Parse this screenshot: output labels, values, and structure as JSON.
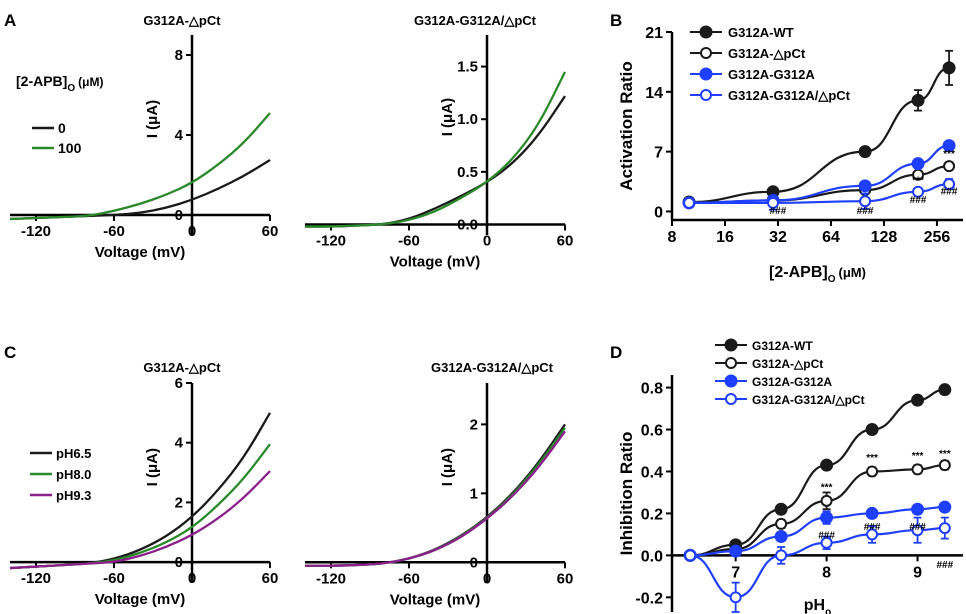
{
  "panel_letters": {
    "a": "A",
    "b": "B",
    "c": "C",
    "d": "D"
  },
  "colors": {
    "black": "#1a1a1a",
    "green": "#2a8a2a",
    "purple": "#8b1f8b",
    "blue": "#1f3fff"
  },
  "symbols": {
    "star": "***",
    "hash": "###"
  },
  "panel_a_left": {
    "subtitle": "G312A-△pCt",
    "legend_title": "[2-APB]",
    "legend_title_sub": "O",
    "legend_title_unit": "(μM)",
    "legend": [
      "0",
      "100"
    ]
  },
  "panel_a_right": {
    "subtitle": "G312A-G312A/△pCt"
  },
  "panel_c_left": {
    "subtitle": "G312A-△pCt",
    "legend": [
      "pH6.5",
      "pH8.0",
      "pH9.3"
    ]
  },
  "panel_c_right": {
    "subtitle": "G312A-G312A/△pCt"
  },
  "panel_b": {
    "legend": [
      "G312A-WT",
      "G312A-△pCt",
      "G312A-G312A",
      "G312A-G312A/△pCt"
    ]
  },
  "panel_d": {
    "legend": [
      "G312A-WT",
      "G312A-△pCt",
      "G312A-G312A",
      "G312A-G312A/△pCt"
    ]
  },
  "chart_data": [
    {
      "id": "A-left",
      "type": "line",
      "title": "G312A-△pCt",
      "xlabel": "Voltage (mV)",
      "ylabel": "I (μA)",
      "xlim": [
        -140,
        60
      ],
      "ylim": [
        -1,
        9
      ],
      "xticks": [
        -120,
        -60,
        0,
        60
      ],
      "yticks": [
        0,
        4,
        8
      ],
      "series": [
        {
          "name": "0",
          "color": "#1a1a1a",
          "x": [
            -140,
            -120,
            -100,
            -80,
            -60,
            -40,
            -20,
            0,
            20,
            40,
            60
          ],
          "y": [
            -0.2,
            -0.15,
            -0.1,
            -0.05,
            0,
            0.1,
            0.35,
            0.75,
            1.3,
            1.95,
            2.75
          ]
        },
        {
          "name": "100",
          "color": "#2a8a2a",
          "x": [
            -140,
            -120,
            -100,
            -80,
            -60,
            -40,
            -20,
            0,
            20,
            40,
            60
          ],
          "y": [
            -0.2,
            -0.15,
            -0.1,
            -0.05,
            0.2,
            0.55,
            1.0,
            1.6,
            2.5,
            3.6,
            5.1
          ]
        }
      ]
    },
    {
      "id": "A-right",
      "type": "line",
      "title": "G312A-G312A/△pCt",
      "xlabel": "Voltage (mV)",
      "ylabel": "I (μA)",
      "xlim": [
        -140,
        60
      ],
      "ylim": [
        -0.1,
        1.8
      ],
      "xticks": [
        -120,
        -60,
        0,
        60
      ],
      "yticks": [
        0.0,
        0.5,
        1.0,
        1.5
      ],
      "tick_labels_y": [
        "0.0",
        "0.5",
        "1.0",
        "1.5"
      ],
      "series": [
        {
          "name": "0",
          "color": "#1a1a1a",
          "x": [
            -140,
            -120,
            -100,
            -80,
            -60,
            -40,
            -20,
            0,
            20,
            40,
            60
          ],
          "y": [
            -0.02,
            -0.02,
            -0.01,
            0,
            0.05,
            0.15,
            0.27,
            0.4,
            0.58,
            0.85,
            1.22
          ]
        },
        {
          "name": "100",
          "color": "#2a8a2a",
          "x": [
            -140,
            -120,
            -100,
            -80,
            -60,
            -40,
            -20,
            0,
            20,
            40,
            60
          ],
          "y": [
            -0.02,
            -0.02,
            -0.01,
            0,
            0.04,
            0.12,
            0.25,
            0.4,
            0.62,
            0.95,
            1.45
          ]
        }
      ]
    },
    {
      "id": "B",
      "type": "scatter",
      "xlabel": "[2-APB]",
      "xlabel_sub": "O",
      "xlabel_unit": "(μM)",
      "ylabel": "Activation Ratio",
      "xscale": "log2",
      "xlim": [
        8,
        360
      ],
      "ylim": [
        -1,
        21
      ],
      "xticks": [
        8,
        16,
        32,
        64,
        128,
        256
      ],
      "yticks": [
        0,
        7,
        14,
        21
      ],
      "series": [
        {
          "name": "G312A-WT",
          "color": "#1a1a1a",
          "filled": true,
          "x": [
            10,
            30,
            100,
            200,
            300
          ],
          "y": [
            1.1,
            2.3,
            7.0,
            13.0,
            16.8
          ],
          "err": [
            0.2,
            0.2,
            0.3,
            1.2,
            2.0
          ]
        },
        {
          "name": "G312A-△pCt",
          "color": "#1a1a1a",
          "filled": false,
          "x": [
            10,
            30,
            100,
            200,
            300
          ],
          "y": [
            1.0,
            1.3,
            2.5,
            4.3,
            5.3
          ],
          "err": [
            0.1,
            0.1,
            0.3,
            0.3,
            0.4
          ]
        },
        {
          "name": "G312A-G312A",
          "color": "#1f3fff",
          "filled": true,
          "x": [
            10,
            30,
            100,
            200,
            300
          ],
          "y": [
            1.0,
            1.3,
            3.0,
            5.6,
            7.7
          ],
          "err": [
            0.1,
            0.1,
            0.2,
            0.3,
            0.4
          ]
        },
        {
          "name": "G312A-G312A/△pCt",
          "color": "#1f3fff",
          "filled": false,
          "x": [
            10,
            30,
            100,
            200,
            300
          ],
          "y": [
            1.0,
            1.0,
            1.2,
            2.3,
            3.2
          ],
          "err": [
            0.2,
            0.8,
            0.9,
            0.4,
            0.6
          ]
        }
      ]
    },
    {
      "id": "C-left",
      "type": "line",
      "title": "G312A-△pCt",
      "xlabel": "Voltage (mV)",
      "ylabel": "I (μA)",
      "xlim": [
        -140,
        60
      ],
      "ylim": [
        -0.7,
        6
      ],
      "xticks": [
        -120,
        -60,
        0,
        60
      ],
      "yticks": [
        0,
        2,
        4,
        6
      ],
      "series": [
        {
          "name": "pH6.5",
          "color": "#1a1a1a",
          "x": [
            -140,
            -120,
            -100,
            -80,
            -60,
            -40,
            -20,
            0,
            20,
            40,
            60
          ],
          "y": [
            -0.2,
            -0.15,
            -0.1,
            -0.05,
            0.1,
            0.4,
            0.85,
            1.5,
            2.4,
            3.5,
            5.0
          ]
        },
        {
          "name": "pH8.0",
          "color": "#2a8a2a",
          "x": [
            -140,
            -120,
            -100,
            -80,
            -60,
            -40,
            -20,
            0,
            20,
            40,
            60
          ],
          "y": [
            -0.2,
            -0.15,
            -0.1,
            -0.05,
            0.05,
            0.3,
            0.65,
            1.15,
            1.9,
            2.8,
            3.95
          ]
        },
        {
          "name": "pH9.3",
          "color": "#8b1f8b",
          "x": [
            -140,
            -120,
            -100,
            -80,
            -60,
            -40,
            -20,
            0,
            20,
            40,
            60
          ],
          "y": [
            -0.2,
            -0.15,
            -0.1,
            -0.05,
            0.0,
            0.2,
            0.5,
            0.9,
            1.45,
            2.15,
            3.05
          ]
        }
      ]
    },
    {
      "id": "C-right",
      "type": "line",
      "title": "G312A-G312A/△pCt",
      "xlabel": "Voltage (mV)",
      "ylabel": "I (μA)",
      "xlim": [
        -140,
        60
      ],
      "ylim": [
        -0.3,
        2.6
      ],
      "xticks": [
        -120,
        -60,
        0,
        60
      ],
      "yticks": [
        0,
        1,
        2
      ],
      "series": [
        {
          "name": "pH6.5",
          "color": "#1a1a1a",
          "x": [
            -140,
            -120,
            -100,
            -80,
            -60,
            -40,
            -20,
            0,
            20,
            40,
            60
          ],
          "y": [
            -0.05,
            -0.05,
            -0.04,
            -0.02,
            0.05,
            0.18,
            0.38,
            0.65,
            1.0,
            1.45,
            2.0
          ]
        },
        {
          "name": "pH8.0",
          "color": "#2a8a2a",
          "x": [
            -140,
            -120,
            -100,
            -80,
            -60,
            -40,
            -20,
            0,
            20,
            40,
            60
          ],
          "y": [
            -0.05,
            -0.05,
            -0.04,
            -0.02,
            0.05,
            0.17,
            0.37,
            0.64,
            0.98,
            1.42,
            1.95
          ]
        },
        {
          "name": "pH9.3",
          "color": "#8b1f8b",
          "x": [
            -140,
            -120,
            -100,
            -80,
            -60,
            -40,
            -20,
            0,
            20,
            40,
            60
          ],
          "y": [
            -0.05,
            -0.05,
            -0.04,
            -0.02,
            0.05,
            0.17,
            0.36,
            0.63,
            0.96,
            1.38,
            1.9
          ]
        }
      ]
    },
    {
      "id": "D",
      "type": "scatter",
      "xlabel": "pH",
      "xlabel_sub": "o",
      "ylabel": "Inhibition Ratio",
      "xlim": [
        6.3,
        9.5
      ],
      "ylim": [
        -0.27,
        0.86
      ],
      "xticks": [
        7,
        8,
        9
      ],
      "yticks": [
        -0.2,
        0.0,
        0.2,
        0.4,
        0.6,
        0.8
      ],
      "tick_labels_y": [
        "-0.2",
        "0.0",
        "0.2",
        "0.4",
        "0.6",
        "0.8"
      ],
      "series": [
        {
          "name": "G312A-WT",
          "color": "#1a1a1a",
          "filled": true,
          "x": [
            6.5,
            7.0,
            7.5,
            8.0,
            8.5,
            9.0,
            9.3
          ],
          "y": [
            0.0,
            0.05,
            0.22,
            0.43,
            0.6,
            0.74,
            0.79
          ],
          "err": [
            0.01,
            0.02,
            0.02,
            0.02,
            0.02,
            0.02,
            0.02
          ]
        },
        {
          "name": "G312A-△pCt",
          "color": "#1a1a1a",
          "filled": false,
          "x": [
            6.5,
            7.0,
            7.5,
            8.0,
            8.5,
            9.0,
            9.3
          ],
          "y": [
            0.0,
            0.03,
            0.15,
            0.26,
            0.4,
            0.41,
            0.43
          ],
          "err": [
            0.01,
            0.02,
            0.02,
            0.04,
            0.02,
            0.02,
            0.02
          ]
        },
        {
          "name": "G312A-G312A",
          "color": "#1f3fff",
          "filled": true,
          "x": [
            6.5,
            7.0,
            7.5,
            8.0,
            8.5,
            9.0,
            9.3
          ],
          "y": [
            0.0,
            0.02,
            0.09,
            0.18,
            0.2,
            0.22,
            0.23
          ],
          "err": [
            0.01,
            0.02,
            0.02,
            0.03,
            0.02,
            0.02,
            0.02
          ]
        },
        {
          "name": "G312A-G312A/△pCt",
          "color": "#1f3fff",
          "filled": false,
          "x": [
            6.5,
            7.0,
            7.5,
            8.0,
            8.5,
            9.0,
            9.3
          ],
          "y": [
            0.0,
            -0.2,
            0.0,
            0.06,
            0.1,
            0.12,
            0.13
          ],
          "err": [
            0.01,
            0.07,
            0.04,
            0.03,
            0.04,
            0.06,
            0.05
          ]
        }
      ]
    }
  ],
  "annotations": {
    "B": [
      {
        "text": "***",
        "x": 300,
        "y": 6.4
      },
      {
        "text": "***",
        "x": 200,
        "y": 3.3
      },
      {
        "text": "###",
        "x": 32,
        "y": -0.3
      },
      {
        "text": "###",
        "x": 100,
        "y": -0.3
      },
      {
        "text": "###",
        "x": 200,
        "y": 1.0
      },
      {
        "text": "###",
        "x": 300,
        "y": 2.0
      }
    ],
    "D": [
      {
        "text": "***",
        "x": 8.0,
        "y": 0.31
      },
      {
        "text": "***",
        "x": 8.5,
        "y": 0.45
      },
      {
        "text": "***",
        "x": 9.0,
        "y": 0.46
      },
      {
        "text": "***",
        "x": 9.3,
        "y": 0.47
      },
      {
        "text": "###",
        "x": 8.0,
        "y": 0.08
      },
      {
        "text": "###",
        "x": 8.5,
        "y": 0.12
      },
      {
        "text": "###",
        "x": 9.0,
        "y": 0.12
      },
      {
        "text": "###",
        "x": 9.3,
        "y": -0.06
      }
    ]
  }
}
